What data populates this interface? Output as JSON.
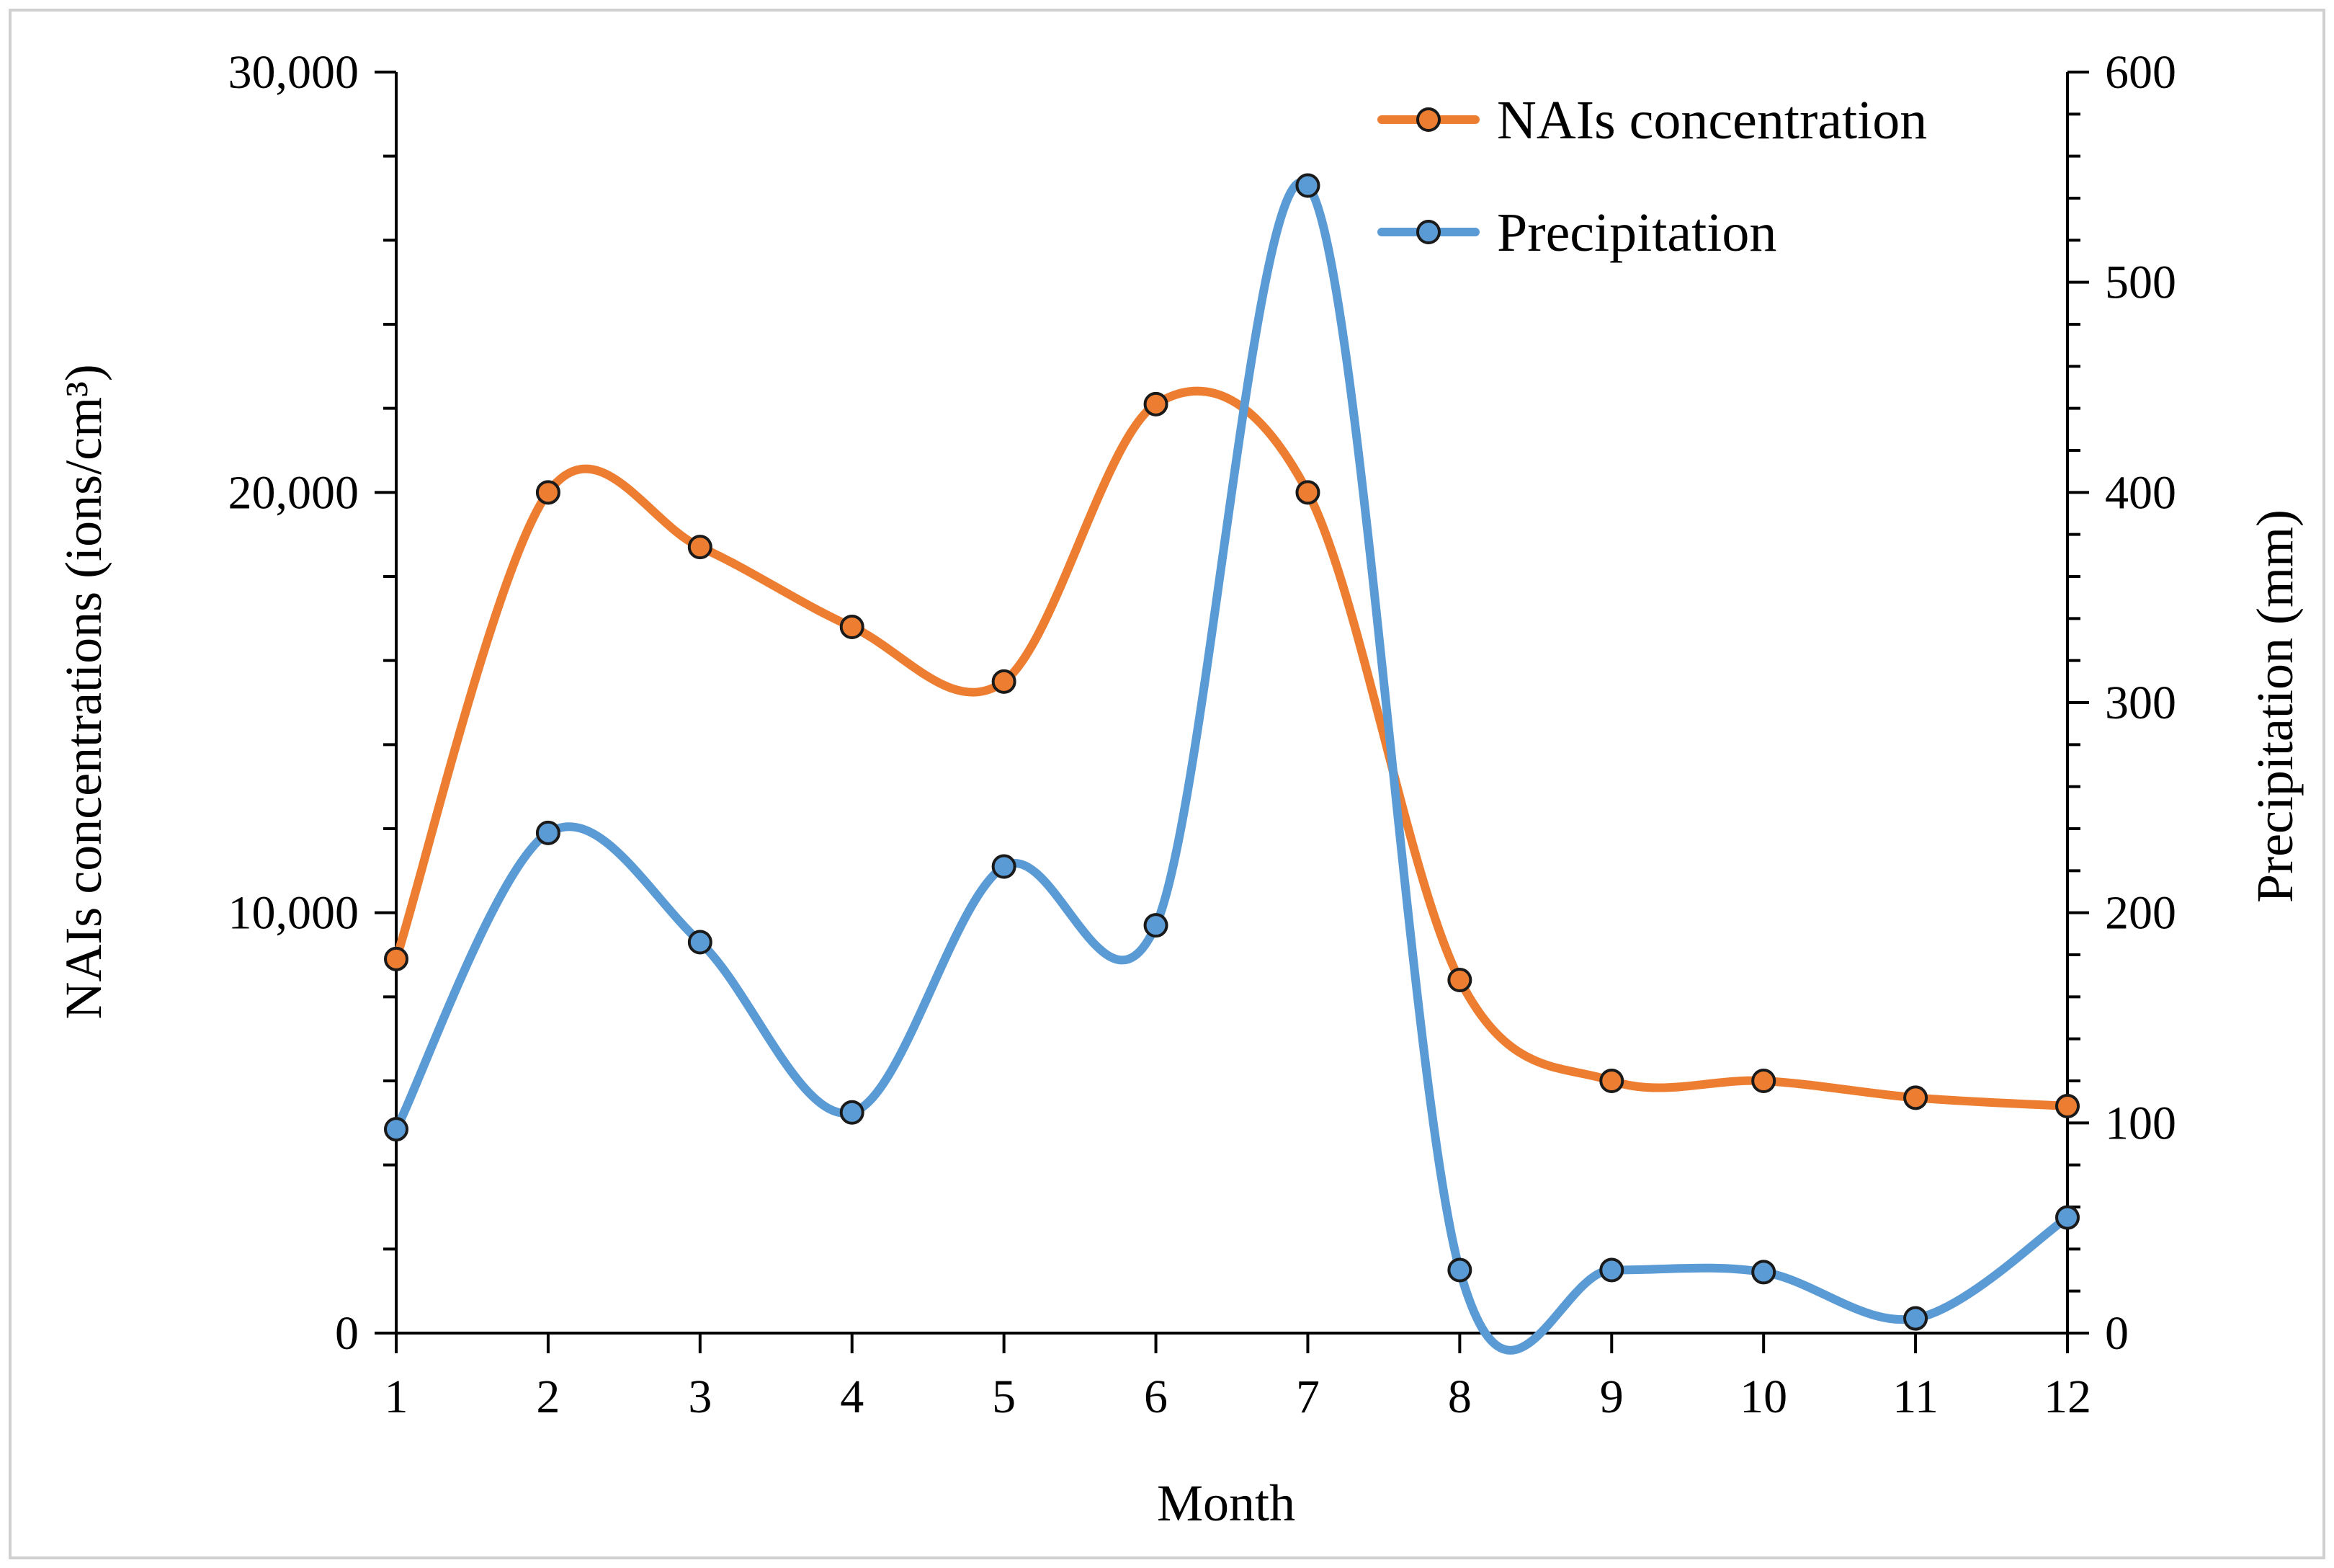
{
  "chart_data": {
    "type": "line",
    "categories": [
      "1",
      "2",
      "3",
      "4",
      "5",
      "6",
      "7",
      "8",
      "9",
      "10",
      "11",
      "12"
    ],
    "xlabel": "Month",
    "ylabel_left": "NAIs concentrations (ions/cm³)",
    "ylabel_right": "Precipitation (mm)",
    "y_left_lim": [
      0,
      30000
    ],
    "y_right_lim": [
      0,
      600
    ],
    "y_left_ticks": [
      "0",
      "10,000",
      "20,000",
      "30,000"
    ],
    "y_right_ticks": [
      "0",
      "100",
      "200",
      "300",
      "400",
      "500",
      "600"
    ],
    "series": [
      {
        "name": "NAIs concentration",
        "axis": "left",
        "color": "#ED7D31",
        "values": [
          8900,
          20000,
          18700,
          16800,
          15500,
          22100,
          20000,
          8400,
          6000,
          6000,
          5600,
          5400
        ]
      },
      {
        "name": "Precipitation",
        "axis": "right",
        "color": "#5B9BD5",
        "values": [
          97,
          238,
          186,
          105,
          222,
          194,
          546,
          30,
          30,
          29,
          7,
          55
        ]
      }
    ],
    "legend_position": "top-right",
    "smooth": true
  }
}
